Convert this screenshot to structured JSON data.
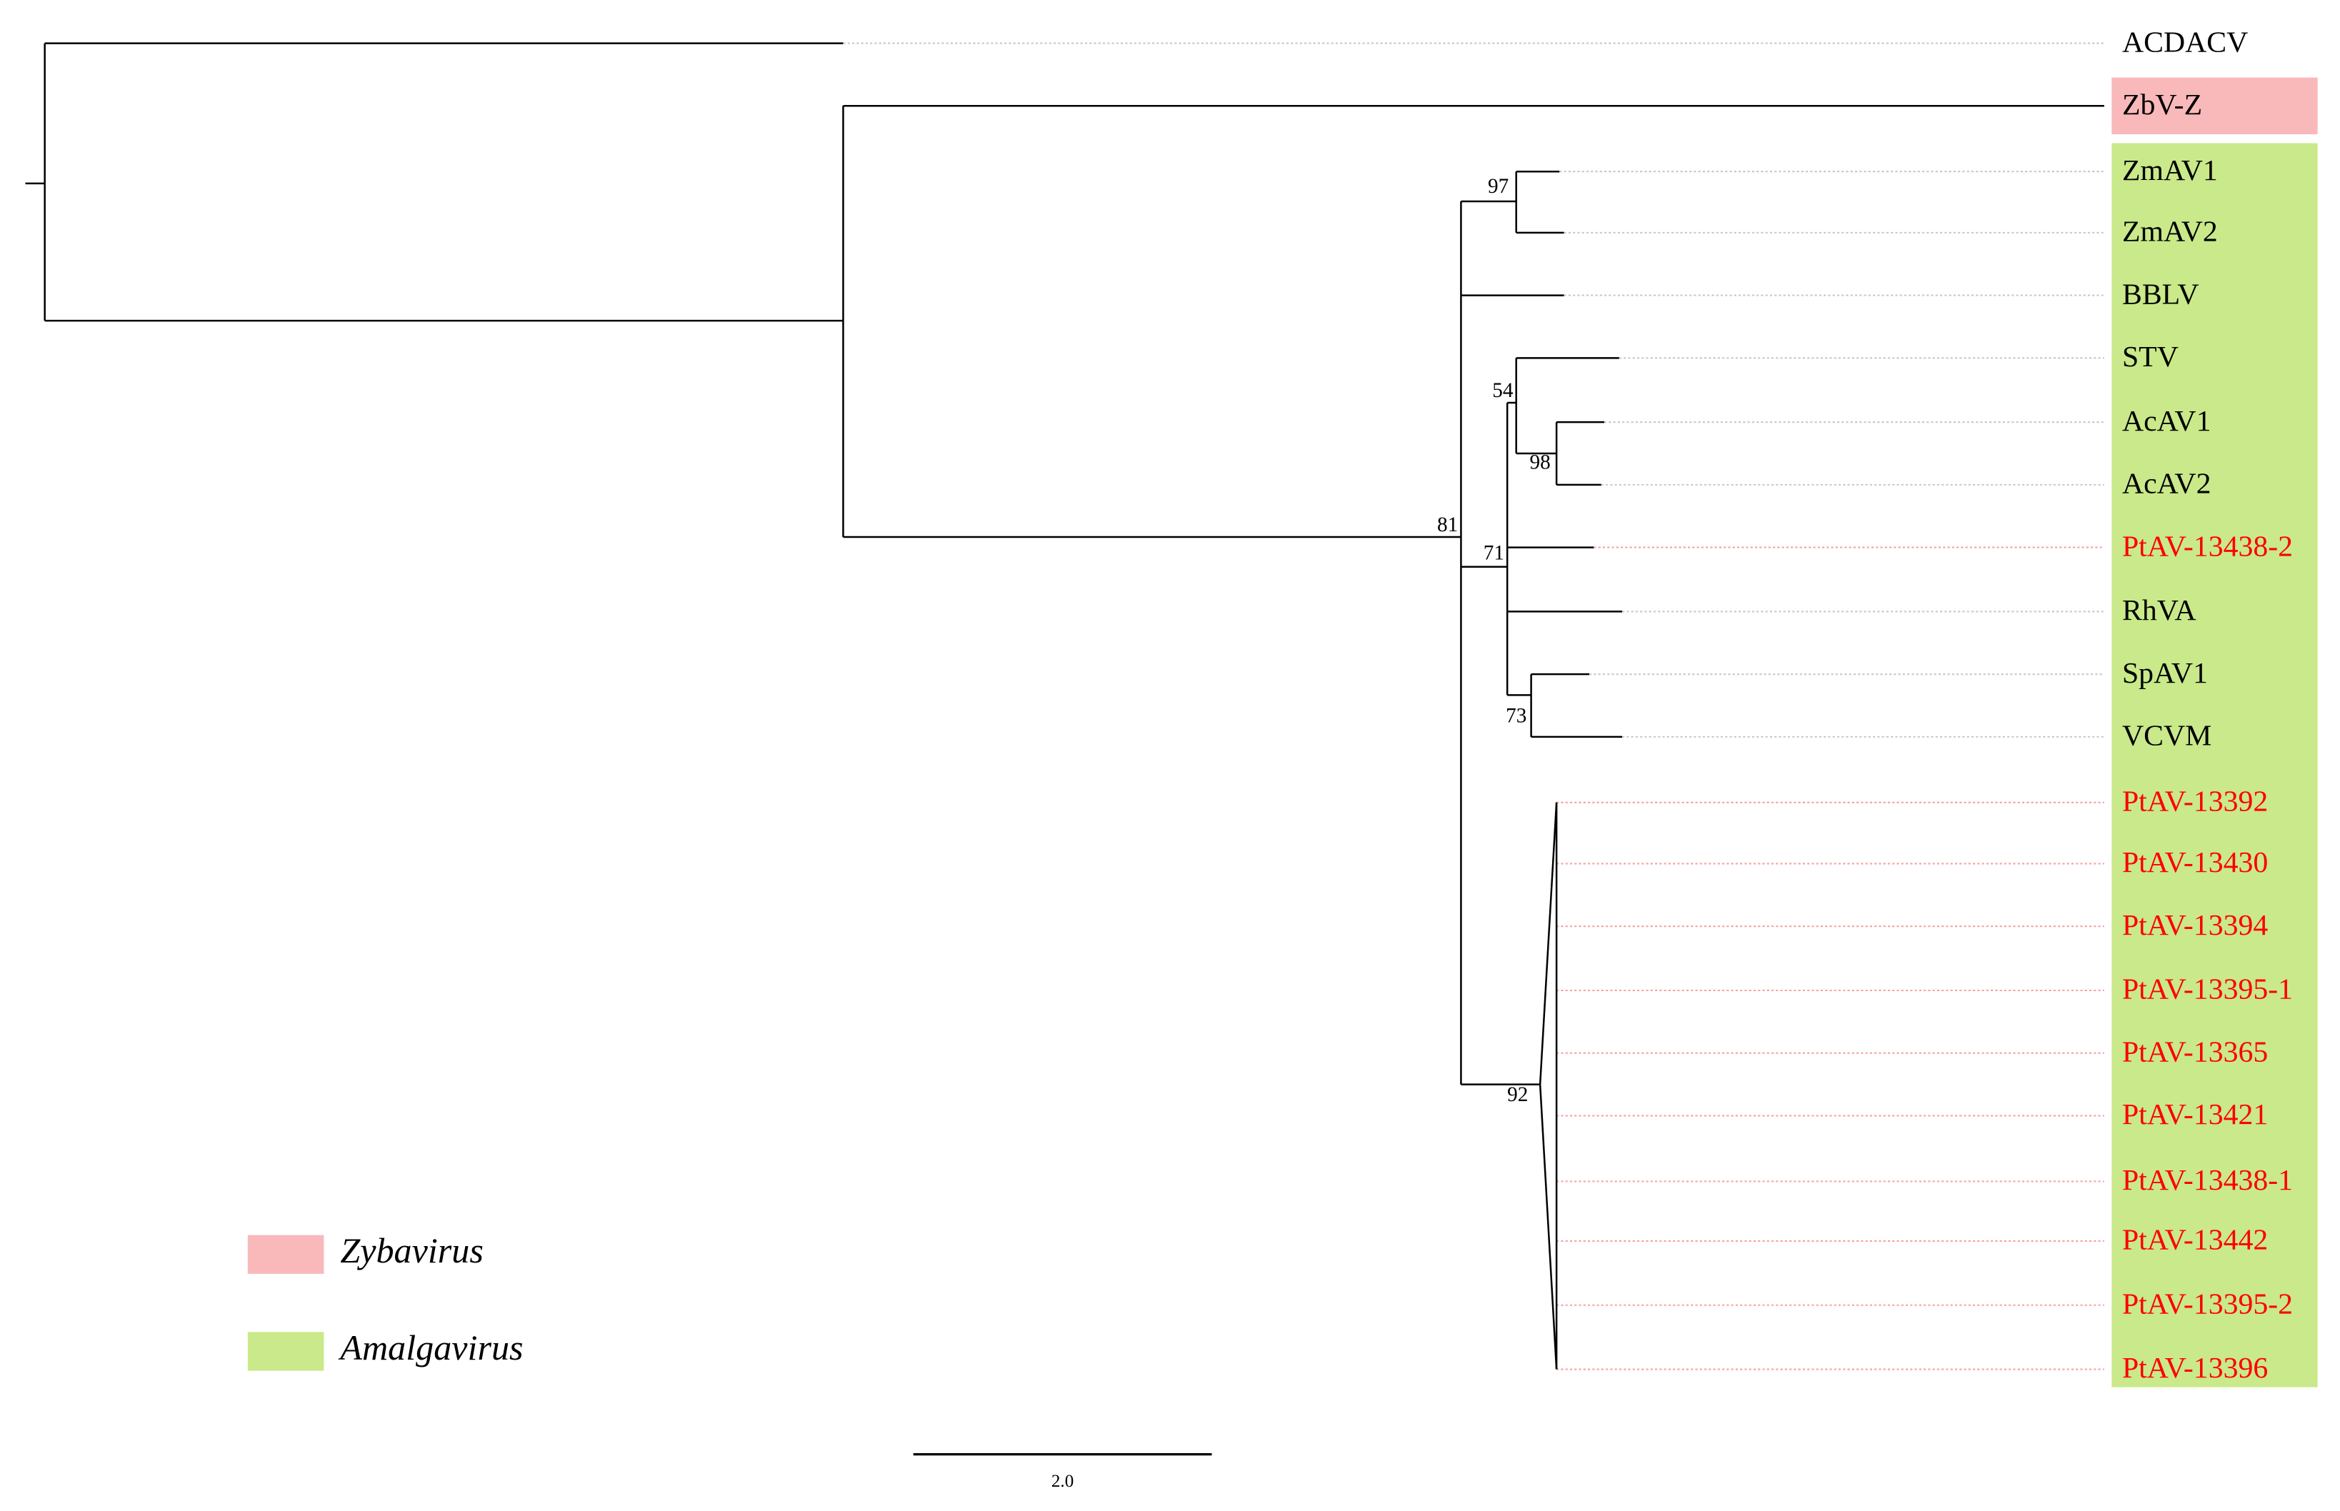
{
  "leaves": [
    {
      "label": "ACDACV",
      "color": "#000000"
    },
    {
      "label": "ZbV-Z",
      "color": "#000000"
    },
    {
      "label": "ZmAV1",
      "color": "#000000"
    },
    {
      "label": "ZmAV2",
      "color": "#000000"
    },
    {
      "label": "BBLV",
      "color": "#000000"
    },
    {
      "label": "STV",
      "color": "#000000"
    },
    {
      "label": "AcAV1",
      "color": "#000000"
    },
    {
      "label": "AcAV2",
      "color": "#000000"
    },
    {
      "label": "PtAV-13438-2",
      "color": "#ff0000"
    },
    {
      "label": "RhVA",
      "color": "#000000"
    },
    {
      "label": "SpAV1",
      "color": "#000000"
    },
    {
      "label": "VCVM",
      "color": "#000000"
    },
    {
      "label": "PtAV-13392",
      "color": "#ff0000"
    },
    {
      "label": "PtAV-13430",
      "color": "#ff0000"
    },
    {
      "label": "PtAV-13394",
      "color": "#ff0000"
    },
    {
      "label": "PtAV-13395-1",
      "color": "#ff0000"
    },
    {
      "label": "PtAV-13365",
      "color": "#ff0000"
    },
    {
      "label": "PtAV-13421",
      "color": "#ff0000"
    },
    {
      "label": "PtAV-13438-1",
      "color": "#ff0000"
    },
    {
      "label": "PtAV-13442",
      "color": "#ff0000"
    },
    {
      "label": "PtAV-13395-2",
      "color": "#ff0000"
    },
    {
      "label": "PtAV-13396",
      "color": "#ff0000"
    }
  ],
  "bootstrap": [
    97,
    81,
    54,
    98,
    71,
    73,
    92
  ],
  "clades": [
    {
      "name": "Zybavirus",
      "color": "#f9b9bb"
    },
    {
      "name": "Amalgavirus",
      "color": "#c9e98a"
    }
  ],
  "scale_bar": "2.0"
}
